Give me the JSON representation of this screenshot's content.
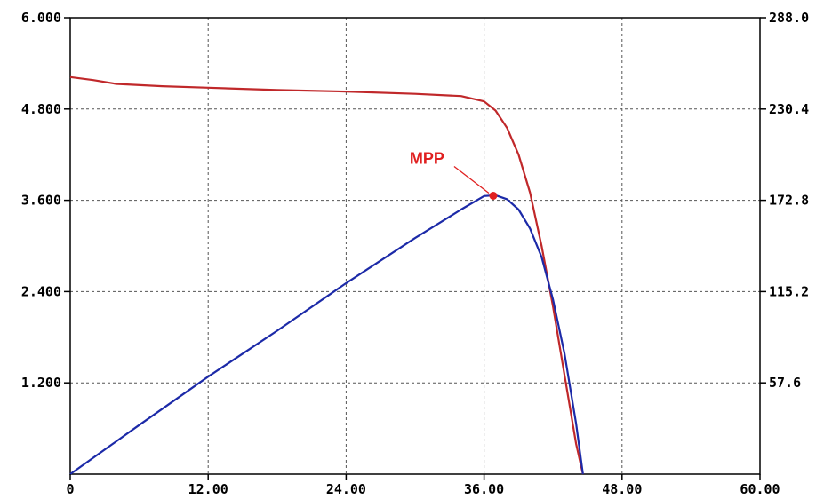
{
  "chart_data": {
    "type": "line",
    "title": "",
    "xlabel": "",
    "ylabel": "",
    "y2label": "",
    "xlim": [
      0,
      60
    ],
    "ylim": [
      0,
      6
    ],
    "y2lim": [
      0,
      288
    ],
    "grid": true,
    "x_tick_values": [
      0,
      12,
      24,
      36,
      48,
      60
    ],
    "x_tick_labels": [
      "0",
      "12.00",
      "24.00",
      "36.00",
      "48.00",
      "60.00"
    ],
    "y_tick_values": [
      1.2,
      2.4,
      3.6,
      4.8,
      6.0
    ],
    "y_tick_labels": [
      "1.200",
      "2.400",
      "3.600",
      "4.800",
      "6.000"
    ],
    "y2_tick_values": [
      57.6,
      115.2,
      172.8,
      230.4,
      288.0
    ],
    "y2_tick_labels": [
      "57.6",
      "115.2",
      "172.8",
      "230.4",
      "288.0"
    ],
    "series": [
      {
        "color": "#c0282a",
        "axis": "left",
        "x": [
          0,
          2,
          4,
          8,
          12,
          18,
          24,
          30,
          34,
          36,
          37,
          38,
          39,
          40,
          41,
          42,
          43,
          44,
          44.6
        ],
        "y": [
          5.22,
          5.18,
          5.13,
          5.1,
          5.08,
          5.05,
          5.03,
          5.0,
          4.97,
          4.9,
          4.78,
          4.55,
          4.2,
          3.7,
          3.0,
          2.2,
          1.3,
          0.4,
          0
        ]
      },
      {
        "color": "#1c2aa8",
        "axis": "right",
        "x": [
          0,
          6,
          12,
          18,
          24,
          30,
          34,
          36,
          37,
          38,
          39,
          40,
          41,
          42,
          43,
          44,
          44.6
        ],
        "y": [
          0,
          31,
          61.5,
          90.5,
          120.5,
          149,
          167,
          175.5,
          176,
          173.5,
          167,
          155,
          137,
          110,
          76,
          32,
          0
        ]
      }
    ],
    "annotations": [
      {
        "text": "MPP",
        "x": 36.8,
        "y": 3.66,
        "color": "#e02020"
      }
    ]
  }
}
